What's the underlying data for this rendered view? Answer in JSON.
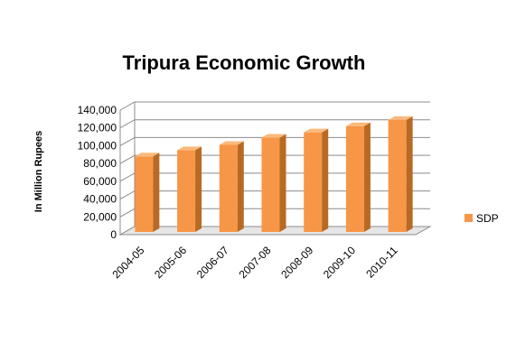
{
  "chart_data": {
    "type": "bar",
    "title": "Tripura Economic Growth",
    "ylabel": "In Million  Rupees",
    "xlabel": "",
    "categories": [
      "2004-05",
      "2005-06",
      "2006-07",
      "2007-08",
      "2008-09",
      "2009-10",
      "2010-11"
    ],
    "series": [
      {
        "name": "SDP",
        "values": [
          88000,
          95000,
          101000,
          109000,
          115000,
          122000,
          129000
        ]
      }
    ],
    "ylim": [
      0,
      140000
    ],
    "yticks": [
      "0",
      "20,000",
      "40,000",
      "60,000",
      "80,000",
      "100,000",
      "120,000",
      "140,000"
    ],
    "grid": true,
    "legend_position": "right",
    "three_d": true,
    "colors": {
      "bar_front": "#F79646",
      "bar_side": "#B86A24",
      "bar_top": "#FAB97C",
      "grid": "#8c8c8c",
      "wall": "#ffffff",
      "floor": "#e6e6e6"
    }
  }
}
